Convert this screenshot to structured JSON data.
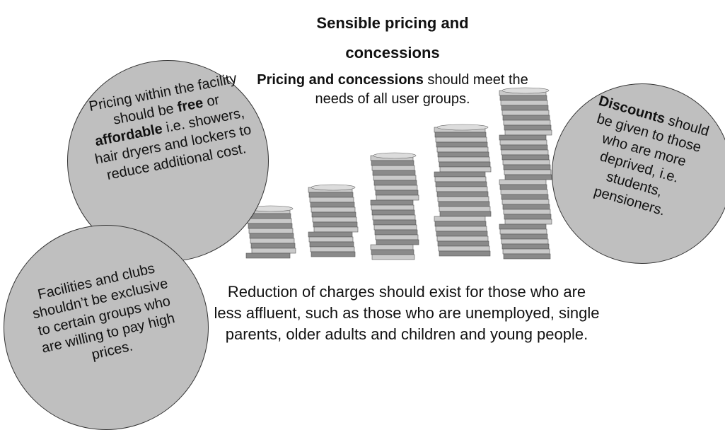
{
  "title": "Sensible pricing and concessions",
  "subtitle": {
    "bold": "Pricing and concessions",
    "rest": " should meet the needs of all user groups."
  },
  "left_circle": {
    "parts": [
      "Pricing within the facility should be ",
      "free",
      " or ",
      "affordable",
      " i.e. showers, hair dryers and lockers to reduce additional cost."
    ]
  },
  "bottom_circle": {
    "text": "Facilities and clubs shouldn’t be exclusive to certain groups who are willing to pay high prices."
  },
  "right_circle": {
    "bold": "Discounts",
    "rest": " should be given to those who are more deprived, i.e. students, pensioners."
  },
  "bottom_text": "Reduction of charges should exist for those who are less affluent, such as those who are unemployed, single parents, older adults and children and young people."
}
